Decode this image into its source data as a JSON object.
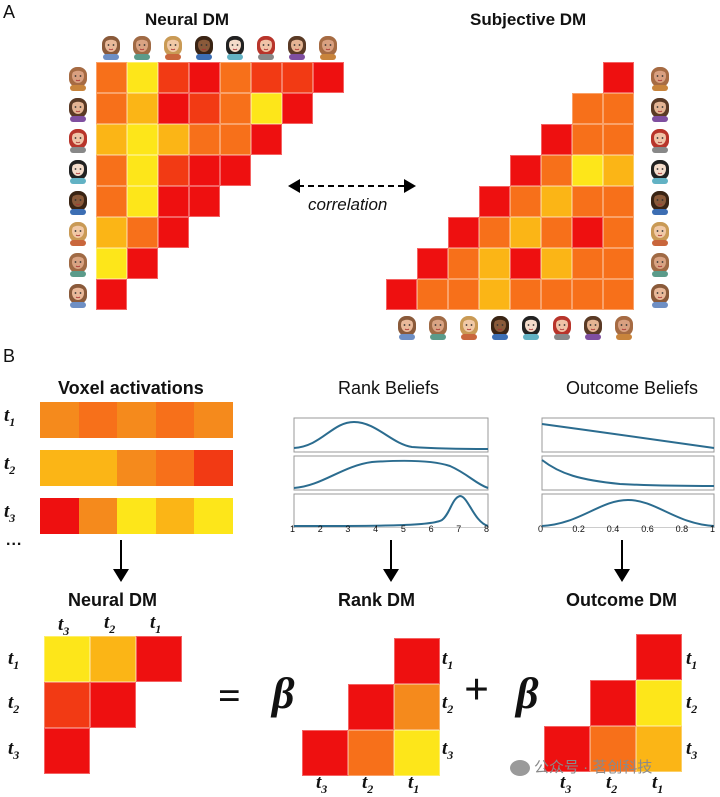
{
  "panelA": {
    "letter": "A",
    "neural_title": "Neural DM",
    "subjective_title": "Subjective DM",
    "correlation_label": "correlation"
  },
  "panelB": {
    "letter": "B",
    "voxel_title": "Voxel activations",
    "rank_title": "Rank Beliefs",
    "outcome_title": "Outcome Beliefs",
    "ellipsis": "...",
    "neural_dm_title": "Neural DM",
    "rank_dm_title": "Rank DM",
    "outcome_dm_title": "Outcome DM",
    "rank_ticks": [
      "1",
      "2",
      "3",
      "4",
      "5",
      "6",
      "7",
      "8"
    ],
    "outcome_ticks": [
      "0",
      "0.2",
      "0.4",
      "0.6",
      "0.8",
      "1"
    ],
    "equals": "=",
    "plus": "+",
    "beta": "β",
    "t1": "t",
    "t1_sub": "1",
    "t2": "t",
    "t2_sub": "2",
    "t3": "t",
    "t3_sub": "3"
  },
  "watermark": "公众号 · 茗创科技",
  "colors": {
    "red": "#ee1010",
    "redorange": "#f23a14",
    "orange": "#f7701a",
    "darkorange": "#f58a1c",
    "amber": "#fbb516",
    "yellow": "#fde61a",
    "brightyellow": "#ffff20",
    "curve": "#2b6c8f"
  },
  "neural_matrix": [
    [
      "orange",
      "yellow",
      "redorange",
      "red",
      "orange",
      "redorange",
      "redorange",
      "red"
    ],
    [
      "orange",
      "amber",
      "red",
      "redorange",
      "orange",
      "yellow",
      "red"
    ],
    [
      "amber",
      "yellow",
      "amber",
      "orange",
      "orange",
      "red"
    ],
    [
      "orange",
      "yellow",
      "redorange",
      "red",
      "red"
    ],
    [
      "orange",
      "yellow",
      "red",
      "red"
    ],
    [
      "amber",
      "orange",
      "red"
    ],
    [
      "yellow",
      "red"
    ],
    [
      "red"
    ]
  ],
  "subjective_matrix": [
    [
      "red"
    ],
    [
      "orange",
      "orange"
    ],
    [
      "red",
      "orange",
      "orange"
    ],
    [
      "red",
      "orange",
      "yellow",
      "amber"
    ],
    [
      "red",
      "orange",
      "amber",
      "orange",
      "orange"
    ],
    [
      "red",
      "orange",
      "amber",
      "orange",
      "red",
      "orange"
    ],
    [
      "red",
      "orange",
      "amber",
      "red",
      "amber",
      "orange",
      "orange"
    ],
    [
      "red",
      "orange",
      "orange",
      "amber",
      "orange",
      "orange",
      "orange",
      "orange"
    ]
  ],
  "voxel_rows": [
    [
      "darkorange",
      "orange",
      "darkorange",
      "orange",
      "darkorange"
    ],
    [
      "amber",
      "amber",
      "darkorange",
      "orange",
      "redorange"
    ],
    [
      "red",
      "darkorange",
      "yellow",
      "amber",
      "yellow"
    ]
  ],
  "neural_small": [
    [
      "yellow",
      "amber",
      "red"
    ],
    [
      "redorange",
      "red"
    ],
    [
      "red"
    ]
  ],
  "rank_small": [
    [
      "red"
    ],
    [
      "red",
      "darkorange"
    ],
    [
      "red",
      "orange",
      "yellow"
    ]
  ],
  "outcome_small": [
    [
      "red"
    ],
    [
      "red",
      "yellow"
    ],
    [
      "red",
      "orange",
      "amber"
    ]
  ],
  "faces": [
    {
      "hair": "#8a5a3a",
      "skin": "#e9b99a",
      "shirt": "#6e8fc4"
    },
    {
      "hair": "#a06a45",
      "skin": "#d9a383",
      "shirt": "#5b9b8a"
    },
    {
      "hair": "#c99a55",
      "skin": "#f1c9a6",
      "shirt": "#c9663c"
    },
    {
      "hair": "#3a2414",
      "skin": "#8a5a3a",
      "shirt": "#3c6eb3"
    },
    {
      "hair": "#222222",
      "skin": "#f4dccb",
      "shirt": "#62b2c4"
    },
    {
      "hair": "#b8352b",
      "skin": "#f0c3a7",
      "shirt": "#888888"
    },
    {
      "hair": "#5a3a25",
      "skin": "#e4b493",
      "shirt": "#7f4fa0"
    },
    {
      "hair": "#a66b43",
      "skin": "#d9a080",
      "shirt": "#c8843c"
    }
  ]
}
